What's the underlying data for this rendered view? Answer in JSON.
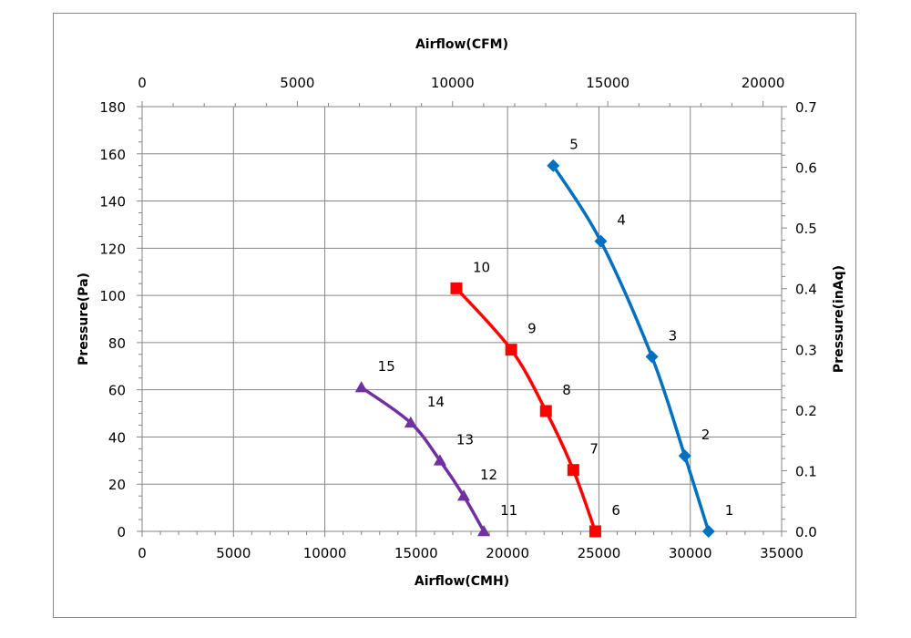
{
  "chart_data": {
    "type": "line",
    "bottom_axis": {
      "label": "Airflow(CMH)",
      "range": [
        0,
        35000
      ],
      "ticks": [
        "0",
        "5000",
        "10000",
        "15000",
        "20000",
        "25000",
        "30000",
        "35000"
      ]
    },
    "top_axis": {
      "label": "Airflow(CFM)",
      "range": [
        0,
        20600
      ],
      "ticks": [
        "0",
        "5000",
        "10000",
        "15000",
        "20000"
      ]
    },
    "left_axis": {
      "label": "Pressure(Pa)",
      "range": [
        0,
        180
      ],
      "ticks": [
        "0",
        "20",
        "40",
        "60",
        "80",
        "100",
        "120",
        "140",
        "160",
        "180"
      ]
    },
    "right_axis": {
      "label": "Pressure(inAq)",
      "range": [
        0,
        0.7
      ],
      "ticks": [
        "0.0",
        "0.1",
        "0.2",
        "0.3",
        "0.4",
        "0.5",
        "0.6",
        "0.7"
      ]
    },
    "grid": true,
    "series": [
      {
        "color": "#0070C0",
        "marker": "diamond",
        "points": [
          {
            "label": "1",
            "x": 31000,
            "y": 0
          },
          {
            "label": "2",
            "x": 29700,
            "y": 32
          },
          {
            "label": "3",
            "x": 27900,
            "y": 74
          },
          {
            "label": "4",
            "x": 25100,
            "y": 123
          },
          {
            "label": "5",
            "x": 22500,
            "y": 155
          }
        ]
      },
      {
        "color": "#FF0000",
        "marker": "square",
        "points": [
          {
            "label": "6",
            "x": 24800,
            "y": 0
          },
          {
            "label": "7",
            "x": 23600,
            "y": 26
          },
          {
            "label": "8",
            "x": 22100,
            "y": 51
          },
          {
            "label": "9",
            "x": 20200,
            "y": 77
          },
          {
            "label": "10",
            "x": 17200,
            "y": 103
          }
        ]
      },
      {
        "color": "#7030A0",
        "marker": "triangle",
        "points": [
          {
            "label": "11",
            "x": 18700,
            "y": 0
          },
          {
            "label": "12",
            "x": 17600,
            "y": 15
          },
          {
            "label": "13",
            "x": 16300,
            "y": 30
          },
          {
            "label": "14",
            "x": 14700,
            "y": 46
          },
          {
            "label": "15",
            "x": 12000,
            "y": 61
          }
        ]
      }
    ]
  }
}
